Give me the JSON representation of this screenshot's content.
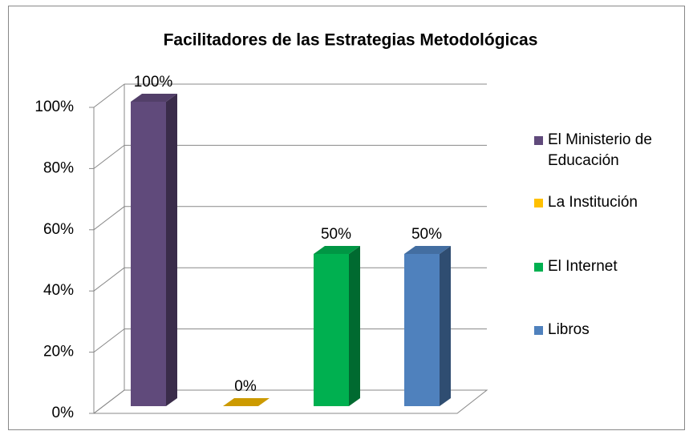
{
  "chart_data": {
    "type": "bar3d",
    "title": "Facilitadores  de las Estrategias Metodológicas",
    "series": [
      {
        "name": "El Ministerio de Educación",
        "color": "#604a7b",
        "values": [
          100
        ],
        "value_labels": [
          "100%"
        ]
      },
      {
        "name": "La Institución",
        "color": "#ffc000",
        "values": [
          0
        ],
        "value_labels": [
          "0%"
        ]
      },
      {
        "name": "El Internet",
        "color": "#00b050",
        "values": [
          50
        ],
        "value_labels": [
          "50%"
        ]
      },
      {
        "name": "Libros",
        "color": "#4f81bd",
        "values": [
          50
        ],
        "value_labels": [
          "50%"
        ]
      }
    ],
    "ylim": [
      0,
      100
    ],
    "yticks": [
      {
        "value": 0,
        "label": "0%"
      },
      {
        "value": 20,
        "label": "20%"
      },
      {
        "value": 40,
        "label": "40%"
      },
      {
        "value": 60,
        "label": "60%"
      },
      {
        "value": 80,
        "label": "80%"
      },
      {
        "value": 100,
        "label": "100%"
      }
    ],
    "grid": true,
    "legend": "right"
  }
}
